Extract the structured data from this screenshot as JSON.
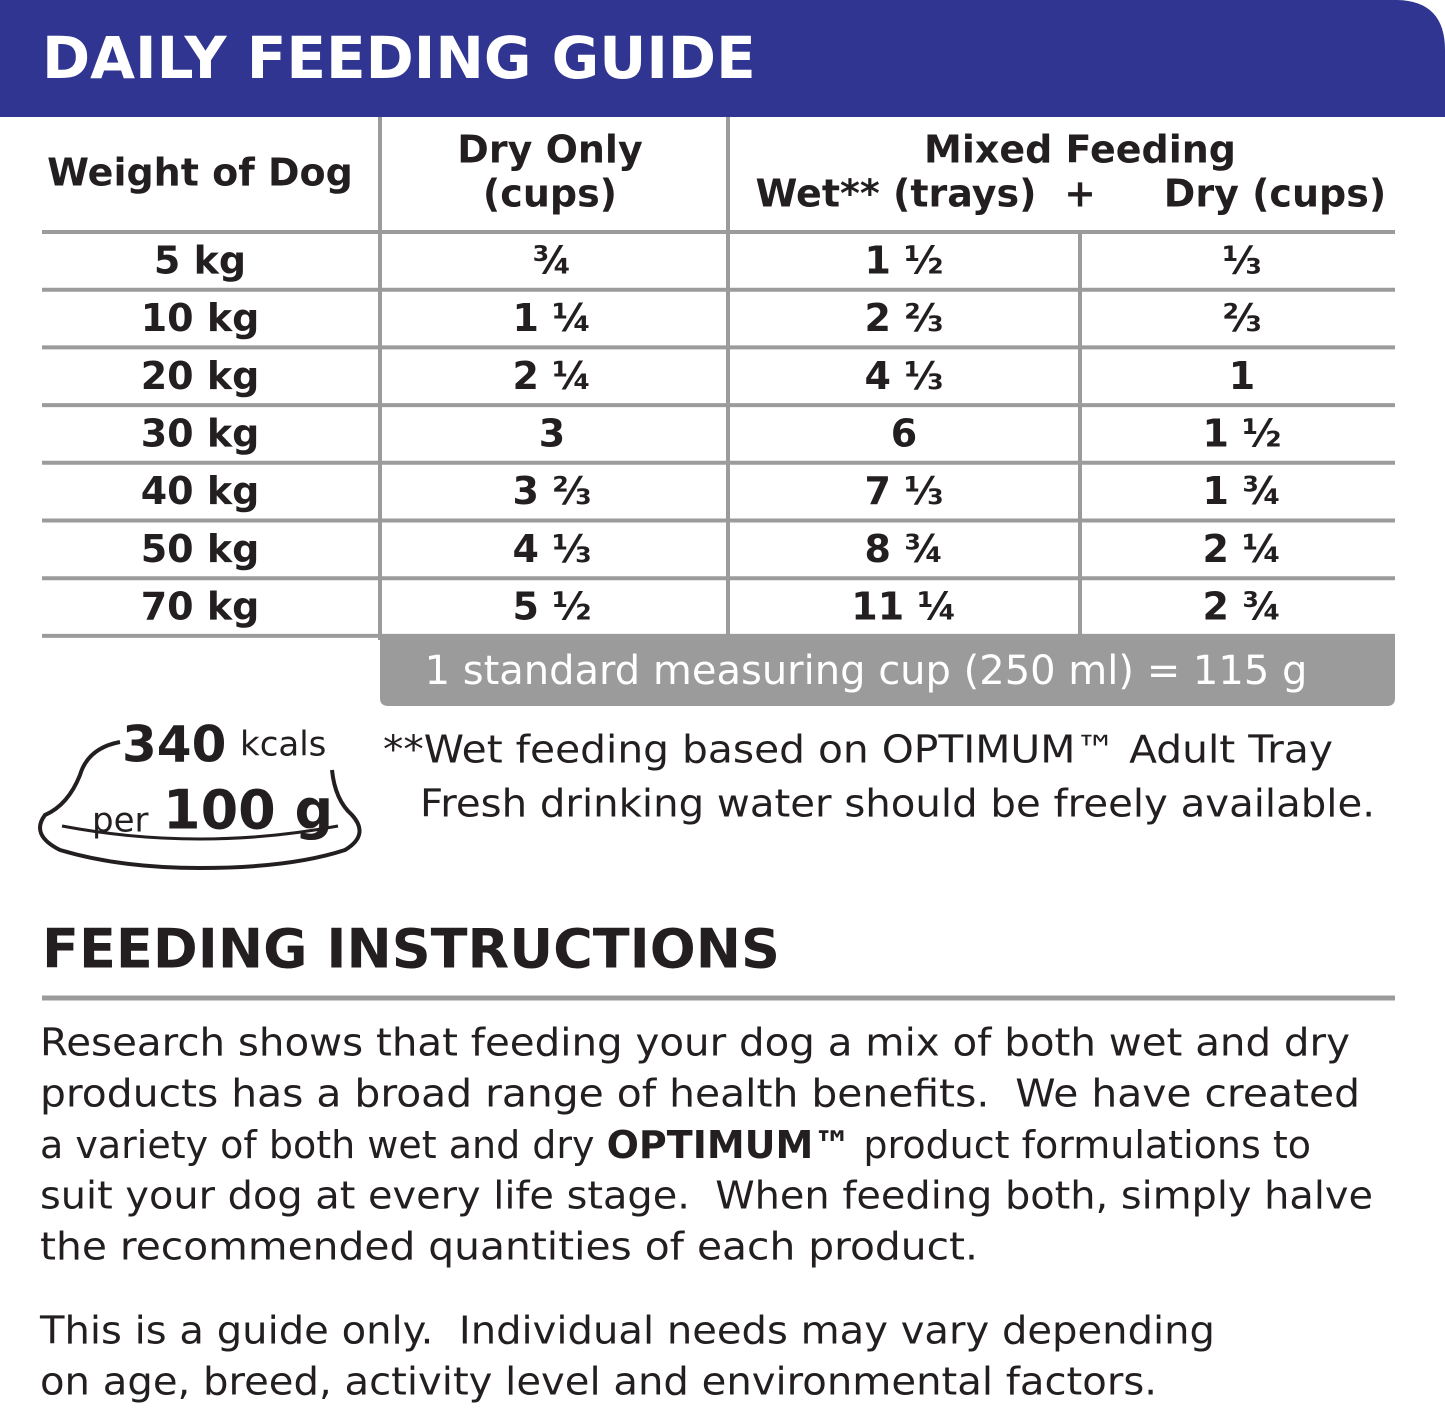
{
  "header": {
    "title": "DAILY FEEDING GUIDE"
  },
  "table": {
    "headers": {
      "weight": "Weight of Dog",
      "dry_only": [
        "Dry Only",
        "(cups)"
      ],
      "mixed": "Mixed Feeding",
      "wet": "Wet** (trays)",
      "plus": "+",
      "dry": "Dry (cups)"
    },
    "rows": [
      [
        "5 kg",
        "¾",
        "1 ½",
        "⅓"
      ],
      [
        "10 kg",
        "1 ¼",
        "2 ⅔",
        "⅔"
      ],
      [
        "20 kg",
        "2 ¼",
        "4 ⅓",
        "1"
      ],
      [
        "30 kg",
        "3",
        "6",
        "1 ½"
      ],
      [
        "40 kg",
        "3 ⅔",
        "7 ⅓",
        "1 ¾"
      ],
      [
        "50 kg",
        "4 ⅓",
        "8 ¾",
        "2 ¼"
      ],
      [
        "70 kg",
        "5 ½",
        "11 ¼",
        "2 ¾"
      ]
    ],
    "cup_note": "1 standard measuring cup (250 ml) = 115 g"
  },
  "energy": {
    "value": "340",
    "unit": "kcals",
    "per": "per",
    "amount": "100 g"
  },
  "footnotes": [
    "**Wet feeding based on OPTIMUM™ Adult Tray",
    "Fresh drinking water should be freely available."
  ],
  "instructions": {
    "title": "FEEDING INSTRUCTIONS",
    "paragraph1": {
      "line1": "Research shows that feeding your dog a mix of both wet and dry",
      "line2": "products has a broad range of health benefits.  We have created",
      "line3": {
        "before": "a variety of both wet and dry ",
        "bold": "OPTIMUM™",
        "after": " product formulations to"
      },
      "line4": "suit your dog at every life stage.  When feeding both, simply halve",
      "line5": "the recommended quantities of each product."
    },
    "paragraph2": [
      "This is a guide only.  Individual needs may vary depending",
      "on age, breed, activity level and environmental factors."
    ]
  }
}
